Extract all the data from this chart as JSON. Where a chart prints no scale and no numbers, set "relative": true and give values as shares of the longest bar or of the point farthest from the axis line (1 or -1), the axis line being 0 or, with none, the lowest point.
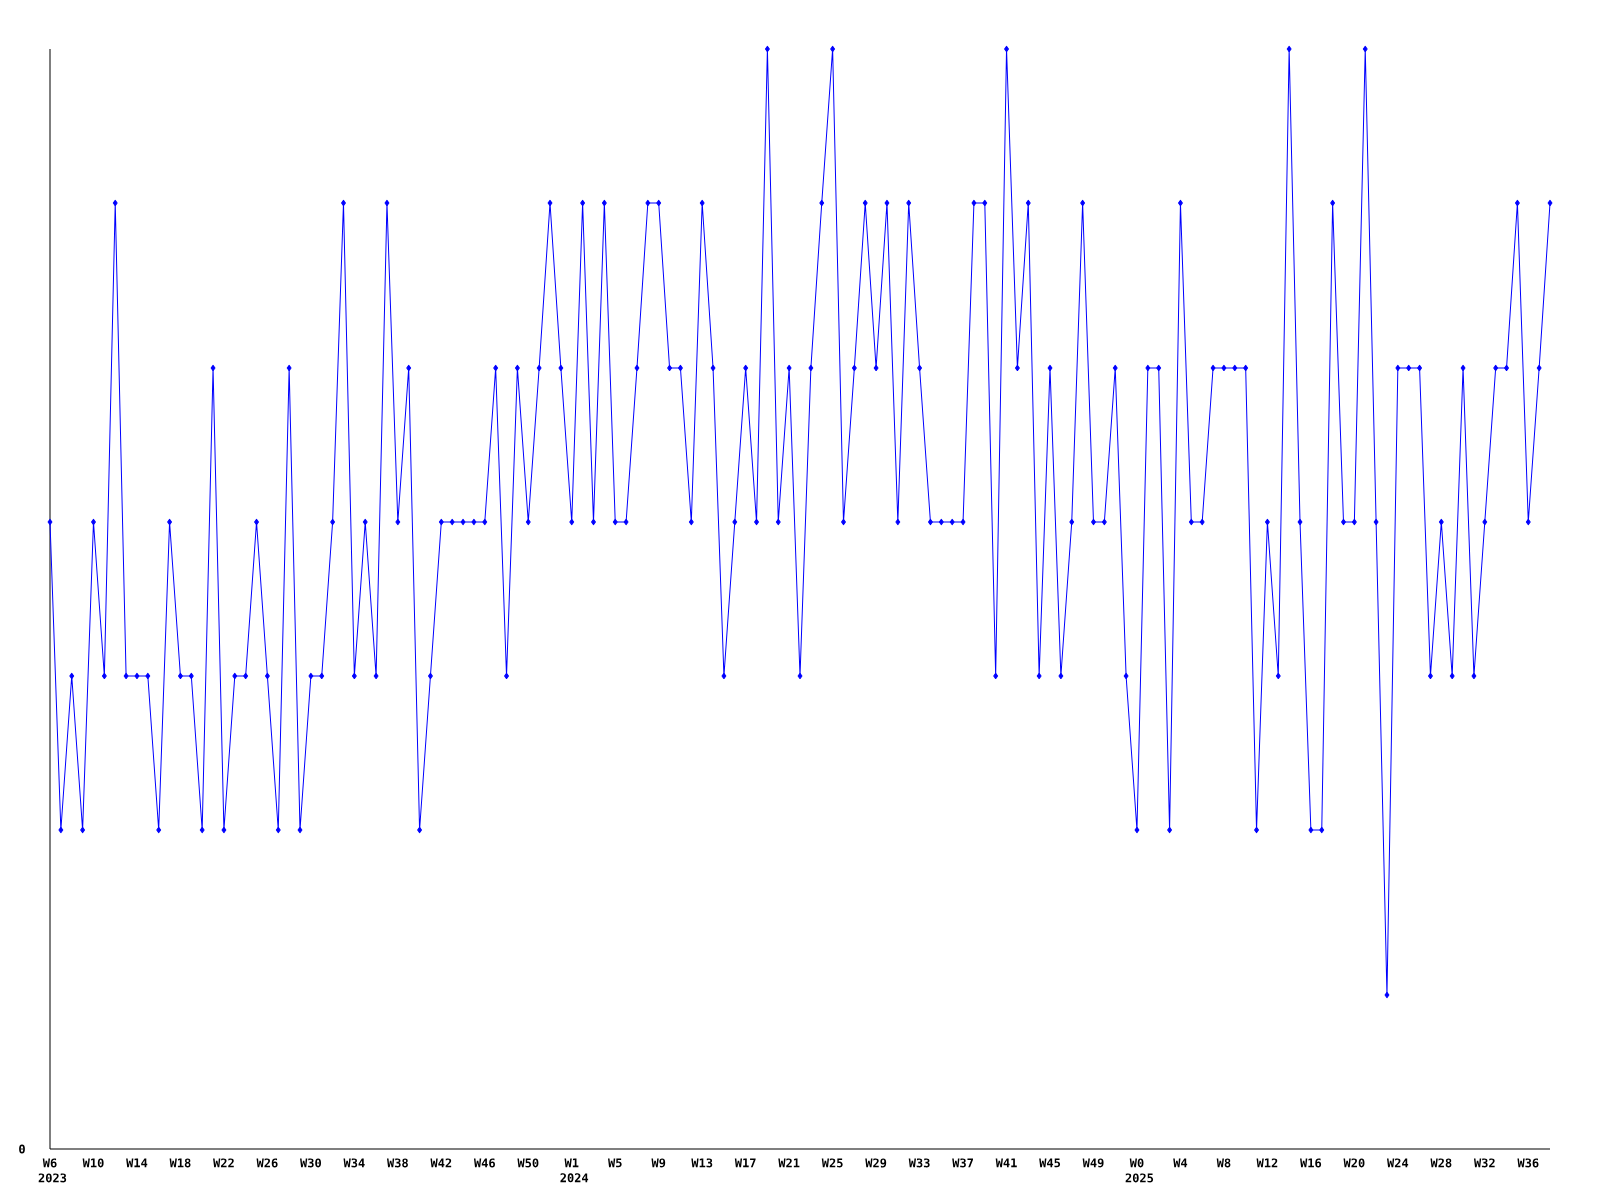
{
  "chart_data": {
    "type": "line",
    "relative": true,
    "color": "#0000ff",
    "marker": "diamond",
    "categories": [
      "W6 2023",
      null,
      null,
      null,
      "W10",
      null,
      null,
      null,
      "W14",
      null,
      null,
      null,
      "W18",
      null,
      null,
      null,
      "W22",
      null,
      null,
      null,
      "W26",
      null,
      null,
      null,
      "W30",
      null,
      null,
      null,
      "W34",
      null,
      null,
      null,
      "W38",
      null,
      null,
      null,
      "W42",
      null,
      null,
      null,
      "W46",
      null,
      null,
      null,
      "W50",
      null,
      null,
      null,
      "W1 2024",
      null,
      null,
      null,
      "W5",
      null,
      null,
      null,
      "W9",
      null,
      null,
      null,
      "W13",
      null,
      null,
      null,
      "W17",
      null,
      null,
      null,
      "W21",
      null,
      null,
      null,
      "W25",
      null,
      null,
      null,
      "W29",
      null,
      null,
      null,
      "W33",
      null,
      null,
      null,
      "W37",
      null,
      null,
      null,
      "W41",
      null,
      null,
      null,
      "W45",
      null,
      null,
      null,
      "W49",
      null,
      null,
      null,
      "W0 2025",
      null,
      null,
      null,
      "W4",
      null,
      null,
      null,
      "W8",
      null,
      null,
      null,
      "W12",
      null,
      null,
      null,
      "W16",
      null,
      null,
      null,
      "W20",
      null,
      null,
      null,
      "W24",
      null,
      null,
      null,
      "W28",
      null,
      null,
      null,
      "W32",
      null,
      null,
      null,
      "W36",
      null,
      null
    ],
    "values": [
      0.57,
      0.29,
      0.43,
      0.29,
      0.57,
      0.43,
      0.86,
      0.43,
      0.43,
      0.43,
      0.29,
      0.57,
      0.43,
      0.43,
      0.29,
      0.71,
      0.29,
      0.43,
      0.43,
      0.57,
      0.43,
      0.29,
      0.71,
      0.29,
      0.43,
      0.43,
      0.57,
      0.86,
      0.43,
      0.57,
      0.43,
      0.86,
      0.57,
      0.71,
      0.29,
      0.43,
      0.57,
      0.57,
      0.57,
      0.57,
      0.57,
      0.71,
      0.43,
      0.71,
      0.57,
      0.71,
      0.86,
      0.71,
      0.57,
      0.86,
      0.57,
      0.86,
      0.57,
      0.57,
      0.71,
      0.86,
      0.86,
      0.71,
      0.71,
      0.57,
      0.86,
      0.71,
      0.43,
      0.57,
      0.71,
      0.57,
      1,
      0.57,
      0.71,
      0.43,
      0.71,
      0.86,
      1,
      0.57,
      0.71,
      0.86,
      0.71,
      0.86,
      0.57,
      0.86,
      0.71,
      0.57,
      0.57,
      0.57,
      0.57,
      0.86,
      0.86,
      0.43,
      1,
      0.71,
      0.86,
      0.43,
      0.71,
      0.43,
      0.57,
      0.86,
      0.57,
      0.57,
      0.71,
      0.43,
      0.29,
      0.71,
      0.71,
      0.29,
      0.86,
      0.57,
      0.57,
      0.71,
      0.71,
      0.71,
      0.71,
      0.29,
      0.57,
      0.43,
      1,
      0.57,
      0.29,
      0.29,
      0.86,
      0.57,
      0.57,
      1,
      0.57,
      0.14,
      0.71,
      0.71,
      0.71,
      0.43,
      0.57,
      0.43,
      0.71,
      0.43,
      0.57,
      0.71,
      0.71,
      0.86,
      0.57,
      0.71,
      0.86
    ],
    "annotations": [
      "0"
    ]
  }
}
